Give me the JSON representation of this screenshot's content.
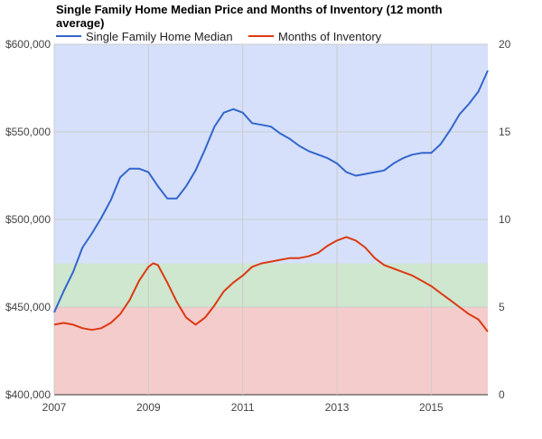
{
  "chart_data": {
    "type": "line",
    "title": "Single Family Home Median Price and Months of Inventory (12 month average)",
    "xlabel": "",
    "ylabel": "",
    "xlim": [
      2007.0,
      2016.2
    ],
    "ylim_left": [
      400000,
      600000
    ],
    "ylim_right": [
      0,
      20
    ],
    "x_ticks": [
      "2007",
      "2009",
      "2011",
      "2013",
      "2015"
    ],
    "y_ticks_left": [
      "$400,000",
      "$450,000",
      "$500,000",
      "$550,000",
      "$600,000"
    ],
    "y_ticks_right": [
      "0",
      "5",
      "10",
      "15",
      "20"
    ],
    "grid": true,
    "legend_position": "top",
    "background_bands": [
      {
        "from": 0,
        "to": 5,
        "axis": "right",
        "color": "#f5cccc"
      },
      {
        "from": 5,
        "to": 7.5,
        "axis": "right",
        "color": "#cfe6cf"
      },
      {
        "from": 7.5,
        "to": 20,
        "axis": "right",
        "color": "#d6e0fb"
      }
    ],
    "series": [
      {
        "name": "Single Family Home Median",
        "axis": "left",
        "color": "#3366cc",
        "x": [
          2007.0,
          2007.2,
          2007.4,
          2007.6,
          2007.8,
          2008.0,
          2008.2,
          2008.4,
          2008.6,
          2008.8,
          2009.0,
          2009.2,
          2009.4,
          2009.6,
          2009.8,
          2010.0,
          2010.2,
          2010.4,
          2010.6,
          2010.8,
          2011.0,
          2011.2,
          2011.4,
          2011.6,
          2011.8,
          2012.0,
          2012.2,
          2012.4,
          2012.6,
          2012.8,
          2013.0,
          2013.2,
          2013.4,
          2013.6,
          2013.8,
          2014.0,
          2014.2,
          2014.4,
          2014.6,
          2014.8,
          2015.0,
          2015.2,
          2015.4,
          2015.6,
          2015.8,
          2016.0,
          2016.2
        ],
        "values": [
          447000,
          459000,
          470000,
          484000,
          492000,
          501000,
          511000,
          524000,
          529000,
          529000,
          527000,
          519000,
          512000,
          512000,
          519000,
          528000,
          540000,
          553000,
          561000,
          563000,
          561000,
          555000,
          554000,
          553000,
          549000,
          546000,
          542000,
          539000,
          537000,
          535000,
          532000,
          527000,
          525000,
          526000,
          527000,
          528000,
          532000,
          535000,
          537000,
          538000,
          538000,
          543000,
          551000,
          560000,
          566000,
          573000,
          585000
        ]
      },
      {
        "name": "Months of Inventory",
        "axis": "right",
        "color": "#dc3912",
        "x": [
          2007.0,
          2007.2,
          2007.4,
          2007.6,
          2007.8,
          2008.0,
          2008.2,
          2008.4,
          2008.6,
          2008.8,
          2009.0,
          2009.1,
          2009.2,
          2009.4,
          2009.6,
          2009.8,
          2010.0,
          2010.2,
          2010.4,
          2010.6,
          2010.8,
          2011.0,
          2011.2,
          2011.4,
          2011.6,
          2011.8,
          2012.0,
          2012.2,
          2012.4,
          2012.6,
          2012.8,
          2013.0,
          2013.2,
          2013.4,
          2013.6,
          2013.8,
          2014.0,
          2014.2,
          2014.4,
          2014.6,
          2014.8,
          2015.0,
          2015.2,
          2015.4,
          2015.6,
          2015.8,
          2016.0,
          2016.2
        ],
        "values": [
          4.0,
          4.1,
          4.0,
          3.8,
          3.7,
          3.8,
          4.1,
          4.6,
          5.4,
          6.5,
          7.3,
          7.5,
          7.4,
          6.4,
          5.3,
          4.4,
          4.0,
          4.4,
          5.1,
          5.9,
          6.4,
          6.8,
          7.3,
          7.5,
          7.6,
          7.7,
          7.8,
          7.8,
          7.9,
          8.1,
          8.5,
          8.8,
          9.0,
          8.8,
          8.4,
          7.8,
          7.4,
          7.2,
          7.0,
          6.8,
          6.5,
          6.2,
          5.8,
          5.4,
          5.0,
          4.6,
          4.3,
          3.6
        ]
      }
    ]
  }
}
